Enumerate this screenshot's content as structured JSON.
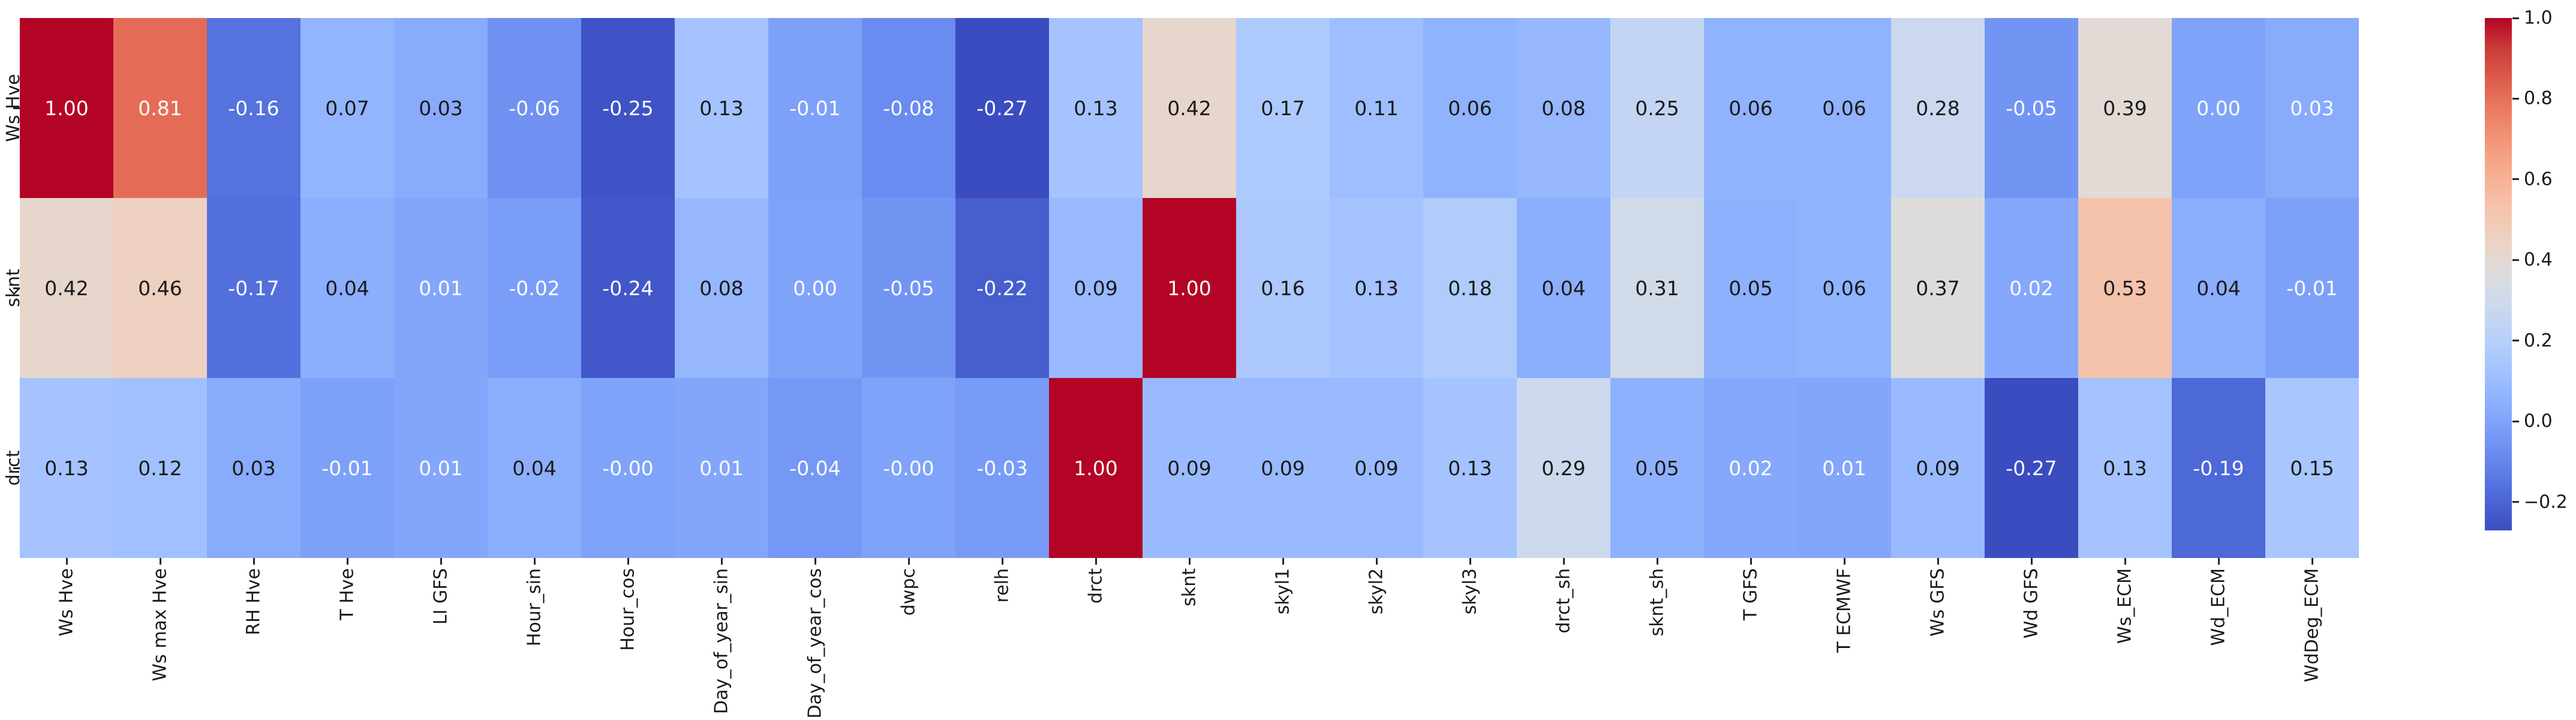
{
  "figure": {
    "background": "#ffffff"
  },
  "colors": {
    "annot_dark": "#1a1a1a",
    "annot_light": "#fdfdfd",
    "tick_color": "#262626",
    "colormap_min": "#3b4cc0",
    "colormap_mid": "#dddddd",
    "colormap_max": "#b40426"
  },
  "chart_data": {
    "type": "heatmap",
    "title": "",
    "xlabel": "",
    "ylabel": "",
    "colormap": "coolwarm",
    "vmin": -0.27,
    "vmax": 1.0,
    "grid": "off",
    "legend_position": "colorbar-right",
    "y_labels": [
      "Ws Hve",
      "sknt",
      "drct"
    ],
    "x_labels": [
      "Ws Hve",
      "Ws max Hve",
      "RH Hve",
      "T Hve",
      "LI GFS",
      "Hour_sin",
      "Hour_cos",
      "Day_of_year_sin",
      "Day_of_year_cos",
      "dwpc",
      "relh",
      "drct",
      "sknt",
      "skyl1",
      "skyl2",
      "skyl3",
      "drct_sh",
      "sknt_sh",
      "T GFS",
      "T ECMWF",
      "Ws GFS",
      "Wd GFS",
      "Ws_ECM",
      "Wd_ECM",
      "WdDeg_ECM"
    ],
    "values": [
      [
        "1.00",
        "0.81",
        "-0.16",
        "0.07",
        "0.03",
        "-0.06",
        "-0.25",
        "0.13",
        "-0.01",
        "-0.08",
        "-0.27",
        "0.13",
        "0.42",
        "0.17",
        "0.11",
        "0.06",
        "0.08",
        "0.25",
        "0.06",
        "0.06",
        "0.28",
        "-0.05",
        "0.39",
        "0.00",
        "0.03"
      ],
      [
        "0.42",
        "0.46",
        "-0.17",
        "0.04",
        "0.01",
        "-0.02",
        "-0.24",
        "0.08",
        "0.00",
        "-0.05",
        "-0.22",
        "0.09",
        "1.00",
        "0.16",
        "0.13",
        "0.18",
        "0.04",
        "0.31",
        "0.05",
        "0.06",
        "0.37",
        "0.02",
        "0.53",
        "0.04",
        "-0.01"
      ],
      [
        "0.13",
        "0.12",
        "0.03",
        "-0.01",
        "0.01",
        "0.04",
        "-0.00",
        "0.01",
        "-0.04",
        "-0.00",
        "-0.03",
        "1.00",
        "0.09",
        "0.09",
        "0.09",
        "0.13",
        "0.29",
        "0.05",
        "0.02",
        "0.01",
        "0.09",
        "-0.27",
        "0.13",
        "-0.19",
        "0.15"
      ]
    ],
    "annot_text_colors": [
      [
        "w",
        "w",
        "w",
        "k",
        "k",
        "w",
        "w",
        "k",
        "w",
        "w",
        "w",
        "k",
        "k",
        "k",
        "k",
        "k",
        "k",
        "k",
        "k",
        "k",
        "k",
        "w",
        "k",
        "w",
        "w"
      ],
      [
        "k",
        "k",
        "w",
        "k",
        "w",
        "w",
        "w",
        "k",
        "w",
        "w",
        "w",
        "k",
        "w",
        "k",
        "k",
        "k",
        "k",
        "k",
        "k",
        "k",
        "k",
        "w",
        "k",
        "k",
        "w"
      ],
      [
        "k",
        "k",
        "k",
        "w",
        "w",
        "k",
        "w",
        "w",
        "w",
        "w",
        "w",
        "w",
        "k",
        "k",
        "k",
        "k",
        "k",
        "k",
        "w",
        "w",
        "k",
        "w",
        "k",
        "w",
        "k"
      ]
    ],
    "colorbar_ticks": [
      "1.0",
      "0.8",
      "0.6",
      "0.4",
      "0.2",
      "0.0",
      "−0.2"
    ],
    "colorbar_tick_values": [
      1.0,
      0.8,
      0.6,
      0.4,
      0.2,
      0.0,
      -0.2
    ]
  }
}
